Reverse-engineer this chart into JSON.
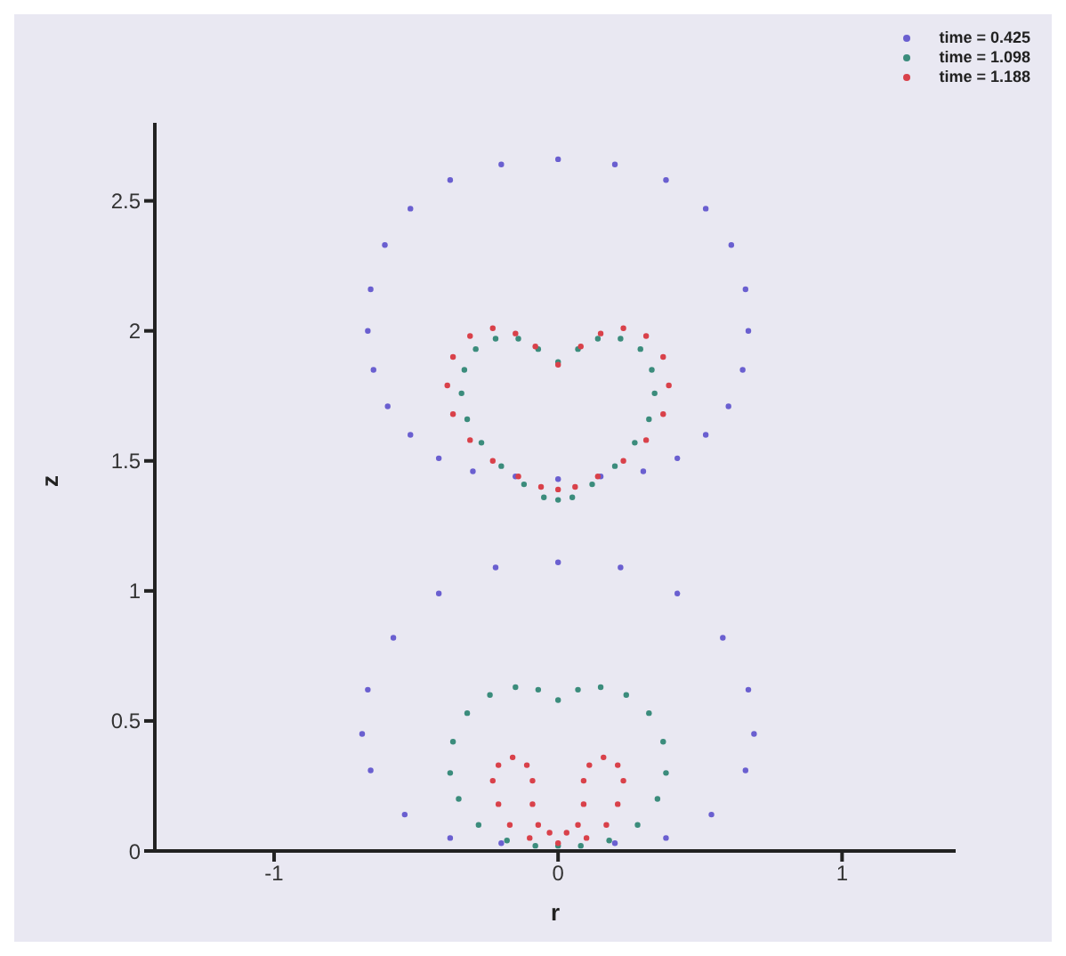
{
  "chart_data": {
    "type": "scatter",
    "xlabel": "r",
    "ylabel": "z",
    "xlim": [
      -1.42,
      1.4
    ],
    "ylim": [
      0,
      2.8
    ],
    "xticks": [
      -1,
      0,
      1
    ],
    "yticks": [
      0,
      0.5,
      1,
      1.5,
      2,
      2.5
    ],
    "grid": false,
    "legend": "top right",
    "marker": "circle",
    "series": [
      {
        "name": "time = 0.425",
        "color": "#6a5fd0",
        "x": [
          0,
          0.2,
          0.38,
          0.52,
          0.61,
          0.66,
          0.67,
          0.65,
          0.6,
          0.52,
          0.42,
          0.3,
          0.15,
          0,
          -0.15,
          -0.3,
          -0.42,
          -0.52,
          -0.6,
          -0.65,
          -0.67,
          -0.66,
          -0.61,
          -0.52,
          -0.38,
          -0.2,
          0,
          0.22,
          0.42,
          0.58,
          0.67,
          0.69,
          0.66,
          0.54,
          0.38,
          0.2,
          -0.2,
          -0.38,
          -0.54,
          -0.66,
          -0.69,
          -0.67,
          -0.58,
          -0.42,
          -0.22
        ],
        "values": [
          2.66,
          2.64,
          2.58,
          2.47,
          2.33,
          2.16,
          2.0,
          1.85,
          1.71,
          1.6,
          1.51,
          1.46,
          1.44,
          1.43,
          1.44,
          1.46,
          1.51,
          1.6,
          1.71,
          1.85,
          2.0,
          2.16,
          2.33,
          2.47,
          2.58,
          2.64,
          1.11,
          1.09,
          0.99,
          0.82,
          0.62,
          0.45,
          0.31,
          0.14,
          0.05,
          0.03,
          0.03,
          0.05,
          0.14,
          0.31,
          0.45,
          0.62,
          0.82,
          0.99,
          1.09
        ]
      },
      {
        "name": "time = 1.098",
        "color": "#3b8c7c",
        "x": [
          0,
          0.07,
          0.14,
          0.22,
          0.29,
          0.33,
          0.34,
          0.32,
          0.27,
          0.2,
          0.12,
          0.05,
          0,
          -0.05,
          -0.12,
          -0.2,
          -0.27,
          -0.32,
          -0.34,
          -0.33,
          -0.29,
          -0.22,
          -0.14,
          -0.07,
          0,
          0.07,
          0.15,
          0.24,
          0.32,
          0.37,
          0.38,
          0.35,
          0.28,
          0.18,
          0.08,
          0,
          -0.08,
          -0.18,
          -0.28,
          -0.35,
          -0.38,
          -0.37,
          -0.32,
          -0.24,
          -0.15,
          -0.07
        ],
        "values": [
          1.88,
          1.93,
          1.97,
          1.97,
          1.93,
          1.85,
          1.76,
          1.66,
          1.57,
          1.48,
          1.41,
          1.36,
          1.35,
          1.36,
          1.41,
          1.48,
          1.57,
          1.66,
          1.76,
          1.85,
          1.93,
          1.97,
          1.97,
          1.93,
          0.58,
          0.62,
          0.63,
          0.6,
          0.53,
          0.42,
          0.3,
          0.2,
          0.1,
          0.04,
          0.02,
          0.02,
          0.02,
          0.04,
          0.1,
          0.2,
          0.3,
          0.42,
          0.53,
          0.6,
          0.63,
          0.62
        ]
      },
      {
        "name": "time = 1.188",
        "color": "#d9414a",
        "x": [
          0,
          0.08,
          0.15,
          0.23,
          0.31,
          0.37,
          0.39,
          0.37,
          0.31,
          0.23,
          0.14,
          0.06,
          0,
          -0.06,
          -0.14,
          -0.23,
          -0.31,
          -0.37,
          -0.39,
          -0.37,
          -0.31,
          -0.23,
          -0.15,
          -0.08,
          0,
          -0.1,
          -0.17,
          -0.21,
          -0.23,
          -0.21,
          -0.16,
          -0.11,
          -0.09,
          -0.09,
          -0.07,
          -0.03,
          0.03,
          0.07,
          0.09,
          0.09,
          0.11,
          0.16,
          0.21,
          0.23,
          0.21,
          0.17,
          0.1
        ],
        "values": [
          1.87,
          1.94,
          1.99,
          2.01,
          1.98,
          1.9,
          1.79,
          1.68,
          1.58,
          1.5,
          1.44,
          1.4,
          1.39,
          1.4,
          1.44,
          1.5,
          1.58,
          1.68,
          1.79,
          1.9,
          1.98,
          2.01,
          1.99,
          1.94,
          0.03,
          0.05,
          0.1,
          0.18,
          0.27,
          0.33,
          0.36,
          0.33,
          0.27,
          0.18,
          0.1,
          0.07,
          0.07,
          0.1,
          0.18,
          0.27,
          0.33,
          0.36,
          0.33,
          0.27,
          0.18,
          0.1,
          0.05
        ]
      }
    ]
  }
}
